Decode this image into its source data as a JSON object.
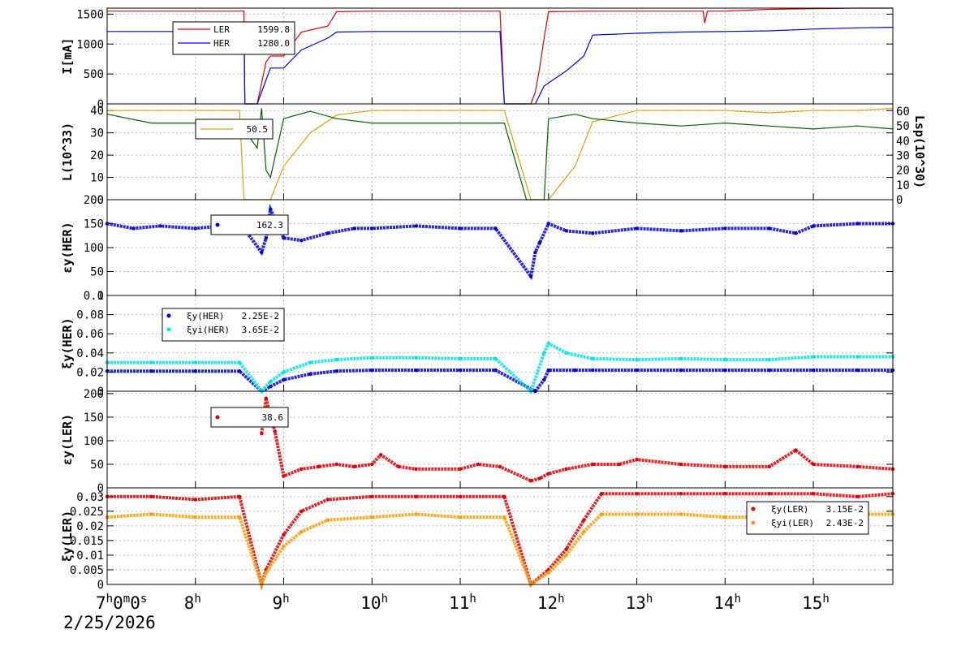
{
  "colors": {
    "ler": "#e00000",
    "her": "#0000e0",
    "lum": "#e0a000",
    "lsp": "#006000",
    "xyi_her": "#00e5e5",
    "xyi_ler": "#ff9c00",
    "grid": "#bbbbbb",
    "frame": "#000000"
  },
  "date_label": "2/25/2026",
  "x_axis": {
    "labels": [
      {
        "text": "7",
        "sup": "h",
        "rest": "0",
        "sup2": "m",
        "rest2": "0",
        "sup3": "s",
        "t": 7.0
      },
      {
        "text": "8",
        "sup": "h",
        "t": 8
      },
      {
        "text": "9",
        "sup": "h",
        "t": 9
      },
      {
        "text": "10",
        "sup": "h",
        "t": 10
      },
      {
        "text": "11",
        "sup": "h",
        "t": 11
      },
      {
        "text": "12",
        "sup": "h",
        "t": 12
      },
      {
        "text": "13",
        "sup": "h",
        "t": 13
      },
      {
        "text": "14",
        "sup": "h",
        "t": 14
      },
      {
        "text": "15",
        "sup": "h",
        "t": 15
      }
    ],
    "range_hours": [
      7.0,
      15.9
    ]
  },
  "chart_data": [
    {
      "type": "line",
      "ylabel": "I[mA]",
      "ylim": [
        0,
        1600
      ],
      "yticks": [
        "0",
        "500",
        "1000",
        "1500"
      ],
      "ytick_values": [
        0,
        500,
        1000,
        1500
      ],
      "grid": true,
      "legend": {
        "placement": "top-left",
        "entries": [
          {
            "name": "LER",
            "value": "1599.8",
            "color": "ler"
          },
          {
            "name": "HER",
            "value": "1280.0",
            "color": "her"
          }
        ]
      },
      "series": [
        {
          "name": "LER",
          "color": "ler",
          "x": [
            7.0,
            8.55,
            8.56,
            8.7,
            8.8,
            8.85,
            9.0,
            9.2,
            9.5,
            9.6,
            10.0,
            11.0,
            11.45,
            11.5,
            11.8,
            11.85,
            11.9,
            11.95,
            12.0,
            12.5,
            13.0,
            13.5,
            13.75,
            13.77,
            13.8,
            14.0,
            14.5,
            15.0,
            15.5,
            15.9
          ],
          "y": [
            1550,
            1550,
            0,
            0,
            700,
            800,
            800,
            1200,
            1300,
            1540,
            1550,
            1550,
            1550,
            0,
            0,
            200,
            600,
            1100,
            1540,
            1550,
            1550,
            1550,
            1550,
            1350,
            1550,
            1550,
            1580,
            1590,
            1600,
            1600
          ]
        },
        {
          "name": "HER",
          "color": "her",
          "x": [
            7.0,
            8.55,
            8.56,
            8.7,
            8.8,
            8.85,
            9.0,
            9.2,
            9.5,
            9.6,
            10.0,
            11.0,
            11.45,
            11.5,
            11.8,
            11.85,
            11.95,
            12.2,
            12.4,
            12.5,
            13.0,
            13.5,
            14.0,
            14.5,
            15.0,
            15.5,
            15.9
          ],
          "y": [
            1210,
            1210,
            0,
            0,
            400,
            600,
            600,
            900,
            1100,
            1200,
            1210,
            1210,
            1210,
            0,
            0,
            0,
            300,
            550,
            800,
            1150,
            1180,
            1200,
            1210,
            1220,
            1250,
            1270,
            1280
          ]
        }
      ]
    },
    {
      "type": "line",
      "ylabel": "L(10^33)",
      "ylabel_right": "Lsp(10^30)",
      "ylim": [
        0,
        43
      ],
      "yticks": [
        "0",
        "10",
        "20",
        "30",
        "40"
      ],
      "ytick_values": [
        0,
        10,
        20,
        30,
        40
      ],
      "y2lim": [
        0,
        65
      ],
      "y2ticks": [
        "0",
        "10",
        "20",
        "30",
        "40",
        "50",
        "60"
      ],
      "y2tick_values": [
        0,
        10,
        20,
        30,
        40,
        50,
        60
      ],
      "grid": true,
      "legend": {
        "placement": "top-left",
        "entries": [
          {
            "name": "",
            "value": "50.5",
            "color": "lum"
          }
        ]
      },
      "series": [
        {
          "name": "L",
          "color": "lum",
          "axis": "left",
          "x": [
            7.0,
            7.5,
            8.0,
            8.5,
            8.55,
            8.7,
            8.85,
            9.0,
            9.3,
            9.6,
            10.0,
            10.5,
            11.0,
            11.5,
            11.8,
            11.9,
            12.0,
            12.3,
            12.5,
            13.0,
            13.5,
            14.0,
            14.5,
            15.0,
            15.5,
            15.9
          ],
          "y": [
            40,
            40,
            40,
            40,
            0,
            0,
            0,
            15,
            30,
            38,
            40,
            40,
            40,
            40,
            0,
            0,
            0,
            15,
            35,
            40,
            40,
            40,
            39,
            40,
            40,
            41
          ]
        },
        {
          "name": "Lsp",
          "color": "lsp",
          "axis": "right",
          "x": [
            7.0,
            7.5,
            8.0,
            8.5,
            8.7,
            8.75,
            8.8,
            8.85,
            9.0,
            9.3,
            9.6,
            10.0,
            10.5,
            11.0,
            11.5,
            11.75,
            11.9,
            11.95,
            12.0,
            12.3,
            12.5,
            13.0,
            13.5,
            14.0,
            14.5,
            15.0,
            15.5,
            15.9
          ],
          "y": [
            58,
            52,
            52,
            52,
            35,
            62,
            20,
            15,
            55,
            60,
            55,
            52,
            52,
            52,
            52,
            0,
            0,
            0,
            55,
            58,
            55,
            52,
            50,
            52,
            50,
            48,
            50,
            48
          ]
        }
      ]
    },
    {
      "type": "scatter",
      "ylabel": "εy(HER)",
      "ylim": [
        0,
        200
      ],
      "yticks": [
        "0",
        "50",
        "100",
        "150",
        "200"
      ],
      "ytick_values": [
        0,
        50,
        100,
        150,
        200
      ],
      "grid": true,
      "legend": {
        "placement": "top-left",
        "entries": [
          {
            "name": "",
            "value": "162.3",
            "color": "her"
          }
        ]
      },
      "series": [
        {
          "name": "",
          "color": "her",
          "x": [
            7.0,
            7.3,
            7.6,
            8.0,
            8.3,
            8.55,
            8.75,
            8.8,
            8.85,
            9.0,
            9.2,
            9.5,
            9.8,
            10.0,
            10.5,
            11.0,
            11.4,
            11.8,
            11.85,
            11.9,
            12.0,
            12.2,
            12.5,
            13.0,
            13.5,
            14.0,
            14.5,
            14.8,
            15.0,
            15.5,
            15.9
          ],
          "y": [
            150,
            140,
            145,
            140,
            145,
            140,
            90,
            120,
            180,
            120,
            115,
            130,
            140,
            140,
            145,
            140,
            140,
            40,
            90,
            110,
            150,
            135,
            130,
            140,
            135,
            140,
            140,
            130,
            145,
            150,
            150
          ]
        }
      ]
    },
    {
      "type": "scatter",
      "ylabel": "ξy(HER)",
      "ylim": [
        0,
        0.1
      ],
      "yticks": [
        "0",
        "0.02",
        "0.04",
        "0.06",
        "0.08",
        "0.1"
      ],
      "ytick_values": [
        0,
        0.02,
        0.04,
        0.06,
        0.08,
        0.1
      ],
      "grid": true,
      "legend": {
        "placement": "top-left",
        "entries": [
          {
            "name": "ξy(HER)",
            "value": "2.25E-2",
            "color": "her"
          },
          {
            "name": "ξyi(HER)",
            "value": "3.65E-2",
            "color": "xyi_her"
          }
        ]
      },
      "series": [
        {
          "name": "ξy(HER)",
          "color": "her",
          "x": [
            7.0,
            7.5,
            8.0,
            8.5,
            8.75,
            8.85,
            9.0,
            9.3,
            9.6,
            10.0,
            10.5,
            11.0,
            11.4,
            11.85,
            11.95,
            12.0,
            12.3,
            12.5,
            13.0,
            13.5,
            14.0,
            14.5,
            15.0,
            15.5,
            15.9
          ],
          "y": [
            0.021,
            0.021,
            0.021,
            0.021,
            0.0,
            0.005,
            0.012,
            0.018,
            0.021,
            0.022,
            0.022,
            0.022,
            0.022,
            0.0,
            0.012,
            0.022,
            0.022,
            0.022,
            0.022,
            0.022,
            0.022,
            0.022,
            0.022,
            0.022,
            0.022
          ]
        },
        {
          "name": "ξyi(HER)",
          "color": "xyi_her",
          "x": [
            7.0,
            7.5,
            8.0,
            8.5,
            8.75,
            8.85,
            9.0,
            9.3,
            9.6,
            10.0,
            10.5,
            11.0,
            11.4,
            11.8,
            11.95,
            12.0,
            12.2,
            12.5,
            13.0,
            13.5,
            14.0,
            14.5,
            15.0,
            15.5,
            15.9
          ],
          "y": [
            0.03,
            0.03,
            0.03,
            0.03,
            0.0,
            0.01,
            0.02,
            0.03,
            0.033,
            0.035,
            0.035,
            0.034,
            0.034,
            0.0,
            0.04,
            0.05,
            0.04,
            0.034,
            0.033,
            0.034,
            0.033,
            0.033,
            0.036,
            0.036,
            0.036
          ]
        }
      ]
    },
    {
      "type": "scatter",
      "ylabel": "εy(LER)",
      "ylim": [
        0,
        205
      ],
      "yticks": [
        "0",
        "50",
        "100",
        "150",
        "200"
      ],
      "ytick_values": [
        0,
        50,
        100,
        150,
        200
      ],
      "grid": true,
      "legend": {
        "placement": "top-left",
        "entries": [
          {
            "name": "",
            "value": "38.6",
            "color": "ler"
          }
        ]
      },
      "series": [
        {
          "name": "",
          "color": "ler",
          "x": [
            8.75,
            8.8,
            8.85,
            8.9,
            9.0,
            9.2,
            9.4,
            9.6,
            9.8,
            10.0,
            10.1,
            10.3,
            10.5,
            11.0,
            11.2,
            11.45,
            11.8,
            11.9,
            12.0,
            12.2,
            12.5,
            12.8,
            13.0,
            13.5,
            14.0,
            14.5,
            14.8,
            15.0,
            15.5,
            15.9
          ],
          "y": [
            115,
            190,
            150,
            120,
            25,
            40,
            45,
            50,
            45,
            50,
            70,
            45,
            40,
            40,
            50,
            45,
            15,
            20,
            30,
            40,
            50,
            50,
            60,
            50,
            45,
            45,
            80,
            50,
            45,
            40
          ]
        }
      ]
    },
    {
      "type": "scatter",
      "ylabel": "ξy(LER)",
      "ylim": [
        0,
        0.033
      ],
      "yticks": [
        "0",
        "0.005",
        "0.01",
        "0.015",
        "0.02",
        "0.025",
        "0.03"
      ],
      "ytick_values": [
        0,
        0.005,
        0.01,
        0.015,
        0.02,
        0.025,
        0.03
      ],
      "grid": true,
      "legend": {
        "placement": "right",
        "entries": [
          {
            "name": "ξy(LER)",
            "value": "3.15E-2",
            "color": "ler"
          },
          {
            "name": "ξyi(LER)",
            "value": "2.43E-2",
            "color": "xyi_ler"
          }
        ]
      },
      "series": [
        {
          "name": "ξy(LER)",
          "color": "ler",
          "x": [
            7.0,
            7.5,
            8.0,
            8.5,
            8.75,
            8.8,
            9.0,
            9.2,
            9.5,
            10.0,
            10.5,
            11.0,
            11.5,
            11.8,
            12.0,
            12.2,
            12.4,
            12.6,
            13.0,
            13.5,
            14.0,
            14.5,
            15.0,
            15.5,
            15.9
          ],
          "y": [
            0.03,
            0.03,
            0.029,
            0.03,
            0.0,
            0.005,
            0.017,
            0.025,
            0.029,
            0.03,
            0.03,
            0.03,
            0.03,
            0.0,
            0.005,
            0.012,
            0.022,
            0.031,
            0.031,
            0.031,
            0.031,
            0.031,
            0.031,
            0.03,
            0.031
          ]
        },
        {
          "name": "ξyi(LER)",
          "color": "xyi_ler",
          "x": [
            7.0,
            7.5,
            8.0,
            8.5,
            8.75,
            8.8,
            9.0,
            9.2,
            9.5,
            10.0,
            10.5,
            11.0,
            11.5,
            11.8,
            12.0,
            12.2,
            12.4,
            12.6,
            13.0,
            13.5,
            14.0,
            14.5,
            15.0,
            15.5,
            15.9
          ],
          "y": [
            0.023,
            0.024,
            0.023,
            0.023,
            0.0,
            0.004,
            0.013,
            0.018,
            0.022,
            0.023,
            0.024,
            0.023,
            0.023,
            0.0,
            0.004,
            0.01,
            0.018,
            0.024,
            0.024,
            0.024,
            0.023,
            0.023,
            0.024,
            0.024,
            0.024
          ]
        }
      ]
    }
  ]
}
